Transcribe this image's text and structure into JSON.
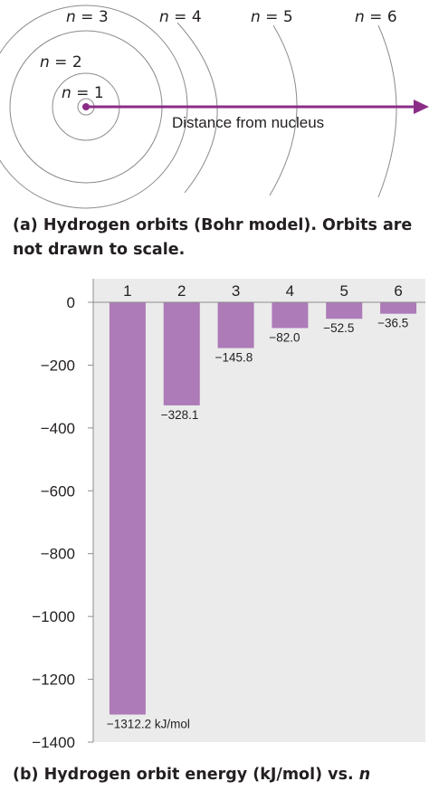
{
  "diagram": {
    "orbit_labels": [
      {
        "n": "n",
        "eq": " = 1"
      },
      {
        "n": "n",
        "eq": " = 2"
      },
      {
        "n": "n",
        "eq": " = 3"
      },
      {
        "n": "n",
        "eq": " = 4"
      },
      {
        "n": "n",
        "eq": " = 5"
      },
      {
        "n": "n",
        "eq": " = 6"
      }
    ],
    "arrow_label": "Distance from nucleus",
    "accent_color": "#8b2d87",
    "orbit_color": "#8c8c8c"
  },
  "caption_a": "(a) Hydrogen orbits (Bohr model). Orbits are not drawn to scale.",
  "caption_b": {
    "text": "(b) Hydrogen orbit energy (kJ/mol) vs. ",
    "var": "n"
  },
  "chart_data": {
    "type": "bar",
    "categories": [
      "1",
      "2",
      "3",
      "4",
      "5",
      "6"
    ],
    "values": [
      -1312.2,
      -328.1,
      -145.8,
      -82.0,
      -52.5,
      -36.5
    ],
    "value_labels": [
      "−1312.2 kJ/mol",
      "−328.1",
      "−145.8",
      "−82.0",
      "−52.5",
      "−36.5"
    ],
    "ylim": [
      -1400,
      0
    ],
    "yticks": [
      0,
      -200,
      -400,
      -600,
      -800,
      -1000,
      -1200,
      -1400
    ],
    "ytick_labels": [
      "0",
      "−200",
      "−400",
      "−600",
      "−800",
      "−1000",
      "−1200",
      "−1400"
    ],
    "category_axis": "top",
    "bar_color": "#ad7bb8",
    "plot_background": "#ebebeb",
    "grid": false
  }
}
